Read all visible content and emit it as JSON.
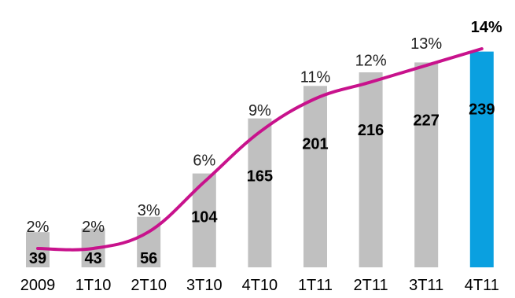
{
  "chart_data": {
    "type": "bar",
    "categories": [
      "2009",
      "1T10",
      "2T10",
      "3T10",
      "4T10",
      "1T11",
      "2T11",
      "3T11",
      "4T11"
    ],
    "series": [
      {
        "values": [
          39,
          43,
          56,
          104,
          165,
          201,
          216,
          227,
          239
        ],
        "value_labels": [
          "39",
          "43",
          "56",
          "104",
          "165",
          "201",
          "216",
          "227",
          "239"
        ],
        "color": "#c0c0c0",
        "highlight_index": 8,
        "highlight_color": "#0aa0e0"
      },
      {
        "type": "line",
        "values": [
          2,
          2,
          3,
          6,
          9,
          11,
          12,
          13,
          14
        ],
        "value_labels": [
          "2%",
          "2%",
          "3%",
          "6%",
          "9%",
          "11%",
          "12%",
          "13%",
          "14%"
        ],
        "color": "#c8128c"
      }
    ],
    "highlight_label_index": 8,
    "grid": false
  }
}
